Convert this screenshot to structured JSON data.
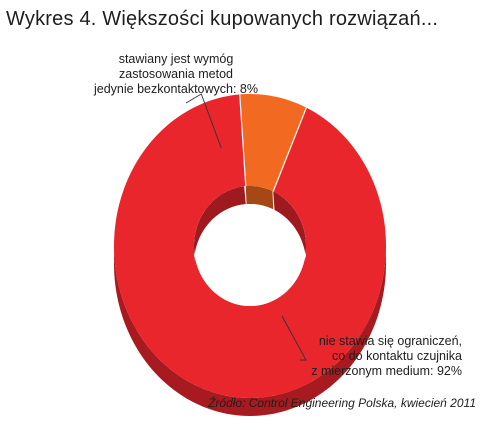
{
  "title": "Wykres 4. Większości kupowanych rozwiązań...",
  "chart_data": {
    "type": "pie",
    "title": "Wykres 4. Większości kupowanych rozwiązań...",
    "style": "donut-3d",
    "slices": [
      {
        "name": "nie stawia się ograniczeń, co do kontaktu czujnika z mierzonym medium",
        "value": 92,
        "color": "#e8262c",
        "label_lines": [
          "nie stawia się ograniczeń,",
          "co do kontaktu czujnika",
          "z mierzonym medium: 92%"
        ]
      },
      {
        "name": "stawiany jest wymóg zastosowania metod jedynie bezkontaktowych",
        "value": 8,
        "color": "#f26a21",
        "label_lines": [
          "stawiany jest wymóg",
          "zastosowania metod",
          "jedynie bezkontaktowych: 8%"
        ]
      }
    ],
    "source": "Źródło: Control Engineering Polska, kwiecień 2011"
  }
}
